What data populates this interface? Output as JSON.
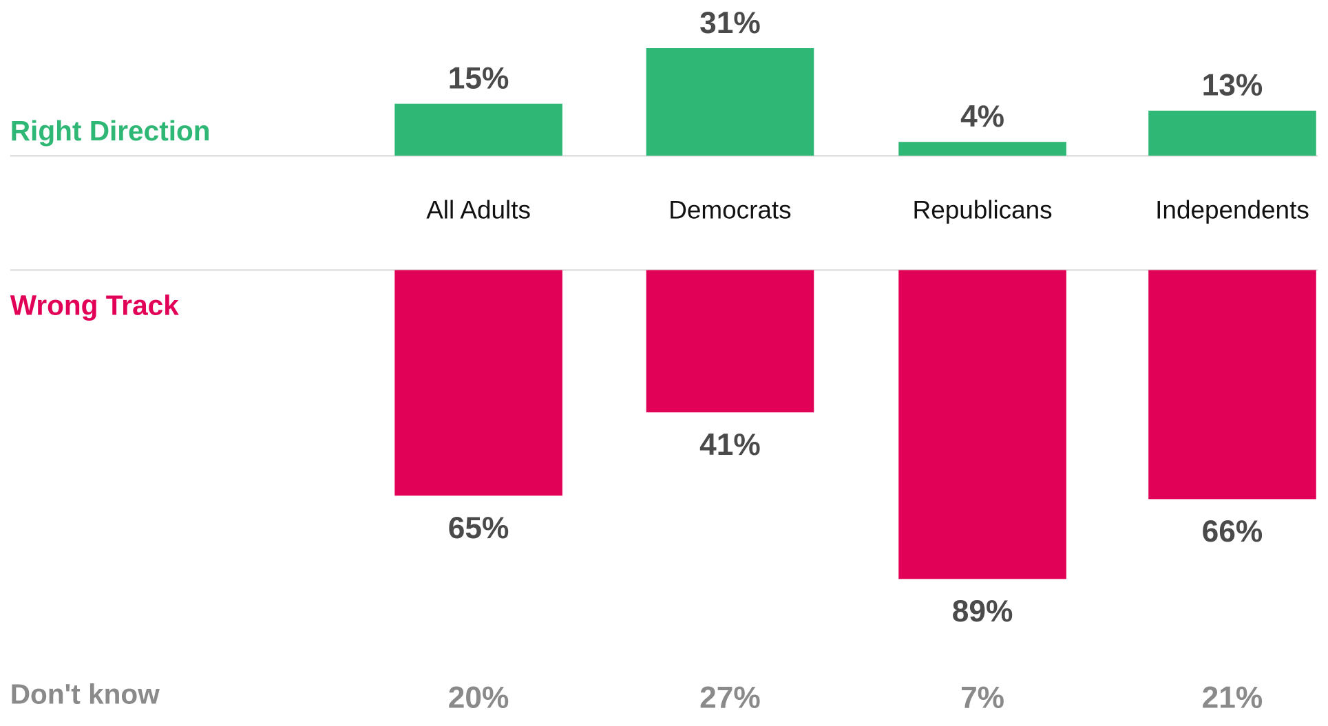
{
  "chart_data": {
    "type": "bar",
    "categories": [
      "All Adults",
      "Democrats",
      "Republicans",
      "Independents"
    ],
    "series": [
      {
        "name": "Right Direction",
        "values": [
          15,
          31,
          4,
          13
        ],
        "labels": [
          "15%",
          "31%",
          "4%",
          "13%"
        ],
        "color": "#2fb775"
      },
      {
        "name": "Wrong Track",
        "values": [
          65,
          41,
          89,
          66
        ],
        "labels": [
          "65%",
          "41%",
          "89%",
          "66%"
        ],
        "color": "#e10257"
      }
    ],
    "dont_know": {
      "name": "Don't know",
      "values": [
        20,
        27,
        7,
        21
      ],
      "labels": [
        "20%",
        "27%",
        "7%",
        "21%"
      ],
      "color": "#8a8a8a"
    },
    "value_label_color": "#4a4a4a",
    "category_label_color": "#111111",
    "baseline_color": "#dedede"
  }
}
